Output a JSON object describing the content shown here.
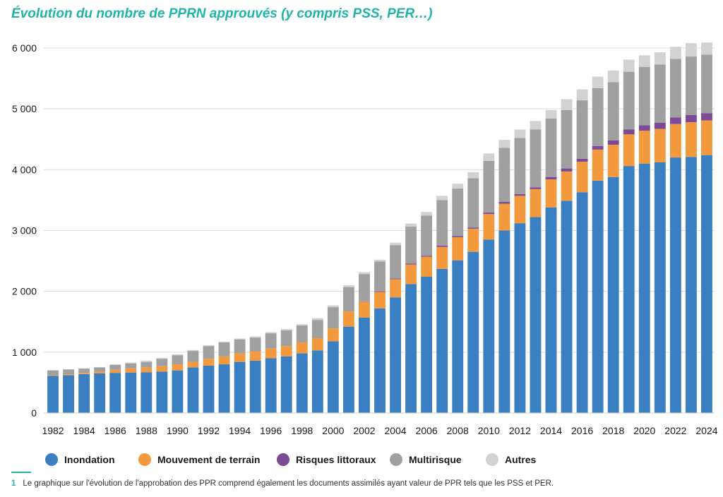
{
  "title": "Évolution du nombre de PPRN approuvés (y compris PSS, PER…)",
  "chart_data": {
    "type": "bar",
    "stacked": true,
    "title": "Évolution du nombre de PPRN approuvés (y compris PSS, PER…)",
    "xlabel": "",
    "ylabel": "",
    "ylim": [
      0,
      6000
    ],
    "yticks": [
      "0",
      "1 000",
      "2 000",
      "3 000",
      "4 000",
      "5 000",
      "6 000"
    ],
    "ytick_values": [
      0,
      1000,
      2000,
      3000,
      4000,
      5000,
      6000
    ],
    "grid": true,
    "legend_position": "bottom",
    "categories": [
      "1982",
      "1983",
      "1984",
      "1985",
      "1986",
      "1987",
      "1988",
      "1989",
      "1990",
      "1991",
      "1992",
      "1993",
      "1994",
      "1995",
      "1996",
      "1997",
      "1998",
      "1999",
      "2000",
      "2001",
      "2002",
      "2003",
      "2004",
      "2005",
      "2006",
      "2007",
      "2008",
      "2009",
      "2010",
      "2011",
      "2012",
      "2013",
      "2014",
      "2015",
      "2016",
      "2017",
      "2018",
      "2019",
      "2020",
      "2021",
      "2022",
      "2023",
      "2024"
    ],
    "xtick_labels": [
      "1982",
      "",
      "1984",
      "",
      "1986",
      "",
      "1988",
      "",
      "1990",
      "",
      "1992",
      "",
      "1994",
      "",
      "1996",
      "",
      "1998",
      "",
      "2000",
      "",
      "2002",
      "",
      "2004",
      "",
      "2006",
      "",
      "2008",
      "",
      "2010",
      "",
      "2012",
      "",
      "2014",
      "",
      "2016",
      "",
      "2018",
      "",
      "2020",
      "",
      "2022",
      "",
      "2024"
    ],
    "series": [
      {
        "name": "Inondation",
        "color": "#3a7fc1",
        "values": [
          610,
          620,
          640,
          650,
          660,
          665,
          670,
          680,
          700,
          750,
          780,
          800,
          840,
          860,
          900,
          930,
          980,
          1030,
          1180,
          1420,
          1570,
          1720,
          1900,
          2120,
          2240,
          2370,
          2510,
          2650,
          2850,
          3000,
          3120,
          3220,
          3380,
          3490,
          3630,
          3820,
          3880,
          4060,
          4100,
          4120,
          4200,
          4210,
          4240
        ]
      },
      {
        "name": "Mouvement de terrain",
        "color": "#f39a3f",
        "values": [
          10,
          15,
          20,
          30,
          50,
          70,
          80,
          90,
          100,
          90,
          110,
          130,
          140,
          150,
          160,
          170,
          180,
          200,
          210,
          250,
          260,
          270,
          300,
          320,
          330,
          360,
          380,
          380,
          420,
          440,
          450,
          460,
          460,
          480,
          500,
          510,
          530,
          520,
          540,
          550,
          550,
          570,
          570
        ]
      },
      {
        "name": "Risques littoraux",
        "color": "#7d4a98",
        "values": [
          0,
          0,
          0,
          0,
          0,
          0,
          0,
          0,
          0,
          0,
          0,
          0,
          0,
          0,
          0,
          0,
          0,
          0,
          0,
          0,
          5,
          10,
          10,
          15,
          15,
          20,
          20,
          20,
          25,
          30,
          30,
          30,
          40,
          50,
          50,
          60,
          70,
          80,
          90,
          100,
          110,
          120,
          120
        ]
      },
      {
        "name": "Multirisque",
        "color": "#a0a0a0",
        "values": [
          80,
          80,
          70,
          70,
          80,
          80,
          90,
          120,
          150,
          180,
          210,
          230,
          230,
          230,
          250,
          260,
          280,
          300,
          350,
          400,
          450,
          490,
          550,
          610,
          660,
          750,
          780,
          810,
          850,
          890,
          920,
          950,
          960,
          960,
          960,
          950,
          960,
          950,
          960,
          960,
          960,
          960,
          960
        ]
      },
      {
        "name": "Autres",
        "color": "#d2d2d2",
        "values": [
          5,
          5,
          5,
          5,
          10,
          15,
          20,
          15,
          15,
          15,
          15,
          15,
          15,
          20,
          20,
          20,
          20,
          30,
          30,
          30,
          30,
          30,
          40,
          50,
          60,
          70,
          80,
          100,
          120,
          130,
          140,
          140,
          140,
          180,
          180,
          190,
          190,
          200,
          190,
          200,
          200,
          220,
          200
        ]
      }
    ]
  },
  "legend": [
    {
      "label": "Inondation",
      "color": "#3a7fc1"
    },
    {
      "label": "Mouvement de terrain",
      "color": "#f39a3f"
    },
    {
      "label": "Risques littoraux",
      "color": "#7d4a98"
    },
    {
      "label": "Multirisque",
      "color": "#a0a0a0"
    },
    {
      "label": "Autres",
      "color": "#d2d2d2"
    }
  ],
  "footnote": {
    "number": "1",
    "text": "Le graphique sur l'évolution de l'approbation des PPR comprend également les documents assimilés ayant valeur de PPR tels que les PSS et PER."
  }
}
